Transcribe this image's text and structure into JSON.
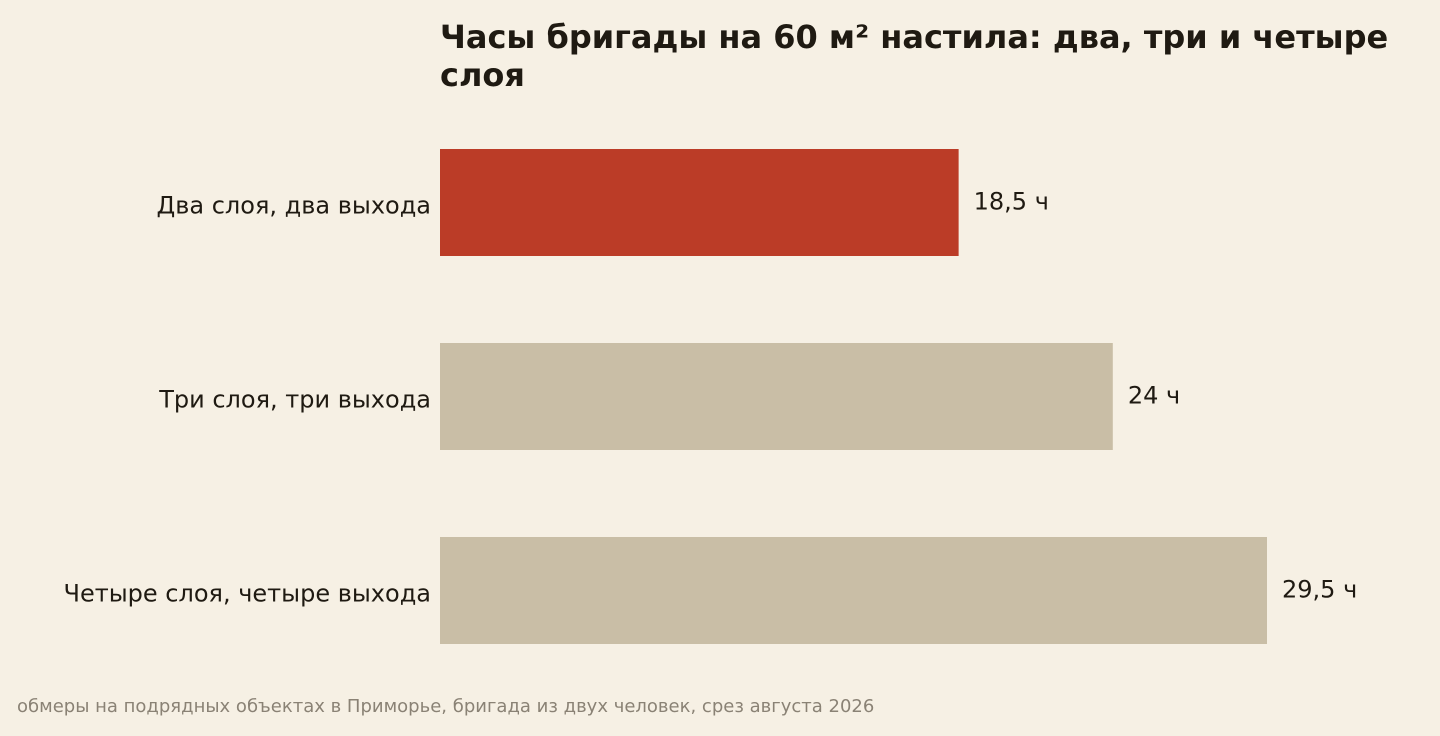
{
  "chart_data": {
    "type": "bar",
    "orientation": "horizontal",
    "title": "Часы бригады на 60 м² настила: два, три и четыре слоя",
    "categories": [
      "Два слоя, два выхода",
      "Три слоя, три выхода",
      "Четыре слоя, четыре выхода"
    ],
    "values": [
      18.5,
      24,
      29.5
    ],
    "value_labels": [
      "18,5 ч",
      "24 ч",
      "29,5 ч"
    ],
    "highlight_index": 0,
    "colors": {
      "highlight": "#bb3c27",
      "default": "#c9bea6"
    },
    "xlim": [
      0,
      29.5
    ],
    "grid": false,
    "legend": "none"
  },
  "footnote": "обмеры на подрядных объектах в Приморье, бригада из двух человек, срез августа 2026"
}
